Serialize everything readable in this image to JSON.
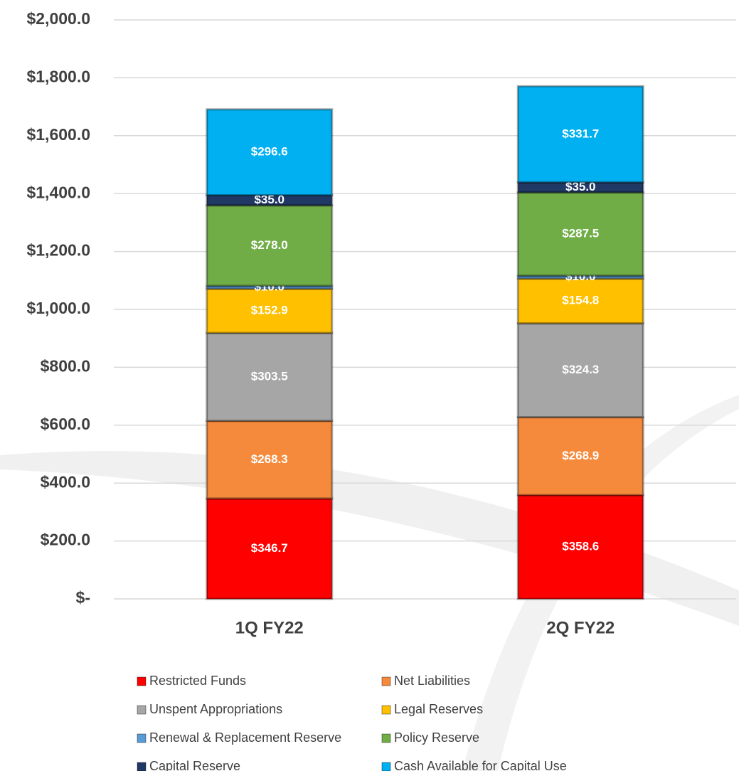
{
  "chart_data": {
    "type": "stacked_bar",
    "categories": [
      "1Q FY22",
      "2Q FY22"
    ],
    "series": [
      {
        "name": "Restricted Funds",
        "color": "#ff0000",
        "values": [
          346.7,
          358.6
        ],
        "value_labels": [
          "$346.7",
          "$358.6"
        ]
      },
      {
        "name": "Net Liabilities",
        "color": "#f58a3c",
        "values": [
          268.3,
          268.9
        ],
        "value_labels": [
          "$268.3",
          "$268.9"
        ]
      },
      {
        "name": "Unspent Appropriations",
        "color": "#a6a6a6",
        "values": [
          303.5,
          324.3
        ],
        "value_labels": [
          "$303.5",
          "$324.3"
        ]
      },
      {
        "name": "Legal Reserves",
        "color": "#ffc000",
        "values": [
          152.9,
          154.8
        ],
        "value_labels": [
          "$152.9",
          "$154.8"
        ]
      },
      {
        "name": "Renewal & Replacement Reserve",
        "color": "#5b9bd5",
        "values": [
          10.0,
          10.0
        ],
        "value_labels": [
          "$10.0",
          "$10.0"
        ]
      },
      {
        "name": "Policy Reserve",
        "color": "#70ad47",
        "values": [
          278.0,
          287.5
        ],
        "value_labels": [
          "$278.0",
          "$287.5"
        ]
      },
      {
        "name": "Capital Reserve",
        "color": "#1f3864",
        "values": [
          35.0,
          35.0
        ],
        "value_labels": [
          "$35.0",
          "$35.0"
        ]
      },
      {
        "name": "Cash Available for Capital Use",
        "color": "#00b0f0",
        "values": [
          296.6,
          331.7
        ],
        "value_labels": [
          "$296.6",
          "$331.7"
        ]
      }
    ],
    "ylim": [
      0,
      2000
    ],
    "yticks": [
      {
        "value": 0,
        "label": "$-"
      },
      {
        "value": 200,
        "label": "$200.0"
      },
      {
        "value": 400,
        "label": "$400.0"
      },
      {
        "value": 600,
        "label": "$600.0"
      },
      {
        "value": 800,
        "label": "$800.0"
      },
      {
        "value": 1000,
        "label": "$1,000.0"
      },
      {
        "value": 1200,
        "label": "$1,200.0"
      },
      {
        "value": 1400,
        "label": "$1,400.0"
      },
      {
        "value": 1600,
        "label": "$1,600.0"
      },
      {
        "value": 1800,
        "label": "$1,800.0"
      },
      {
        "value": 2000,
        "label": "$2,000.0"
      }
    ],
    "grid": true
  }
}
